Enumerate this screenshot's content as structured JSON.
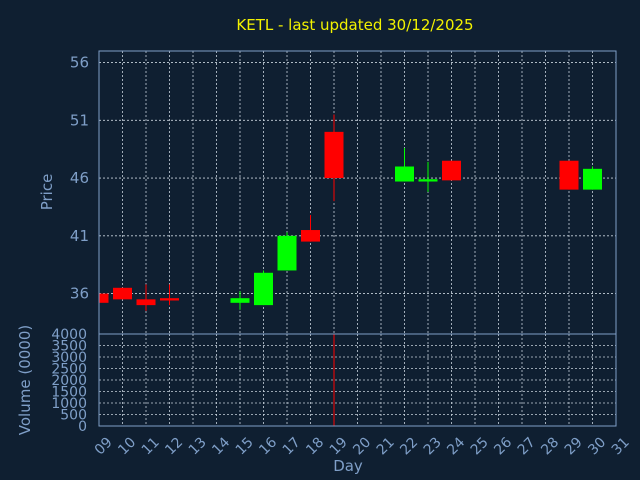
{
  "chart_data": {
    "type": "candlestick",
    "title": "KETL - last updated 30/12/2025",
    "xlabel": "Day",
    "ylabel": "Price",
    "volume_label": "Volume (0000)",
    "x_ticks": [
      "09",
      "10",
      "11",
      "12",
      "13",
      "14",
      "15",
      "16",
      "17",
      "18",
      "19",
      "20",
      "21",
      "22",
      "23",
      "24",
      "25",
      "26",
      "27",
      "28",
      "29",
      "30",
      "31"
    ],
    "price_ticks": [
      36,
      41,
      46,
      51,
      56
    ],
    "price_ylim": [
      32.5,
      57
    ],
    "volume_ticks": [
      0,
      500,
      1000,
      1500,
      2000,
      2500,
      3000,
      3500,
      4000
    ],
    "volume_ylim": [
      0,
      4000
    ],
    "grid": true,
    "up_color": "#00ff00",
    "down_color": "#ff0000",
    "candles": [
      {
        "day": "09",
        "open": 36.0,
        "high": 36.0,
        "low": 35.2,
        "close": 35.2,
        "volume": 0
      },
      {
        "day": "10",
        "open": 36.5,
        "high": 36.5,
        "low": 35.5,
        "close": 35.5,
        "volume": 0
      },
      {
        "day": "11",
        "open": 35.5,
        "high": 36.8,
        "low": 34.5,
        "close": 35.0,
        "volume": 0
      },
      {
        "day": "12",
        "open": 35.6,
        "high": 36.8,
        "low": 35.0,
        "close": 35.4,
        "volume": 0
      },
      {
        "day": "15",
        "open": 35.2,
        "high": 36.2,
        "low": 34.6,
        "close": 35.6,
        "volume": 0
      },
      {
        "day": "16",
        "open": 35.0,
        "high": 38.0,
        "low": 35.0,
        "close": 37.8,
        "volume": 0
      },
      {
        "day": "17",
        "open": 38.0,
        "high": 41.3,
        "low": 38.0,
        "close": 41.0,
        "volume": 0
      },
      {
        "day": "18",
        "open": 41.5,
        "high": 42.8,
        "low": 40.5,
        "close": 40.5,
        "volume": 0
      },
      {
        "day": "19",
        "open": 50.0,
        "high": 51.5,
        "low": 44.0,
        "close": 46.0,
        "volume": 4000
      },
      {
        "day": "22",
        "open": 45.7,
        "high": 48.6,
        "low": 45.7,
        "close": 47.0,
        "volume": 0
      },
      {
        "day": "23",
        "open": 45.7,
        "high": 47.4,
        "low": 44.8,
        "close": 45.9,
        "volume": 0
      },
      {
        "day": "24",
        "open": 47.5,
        "high": 47.5,
        "low": 45.8,
        "close": 45.8,
        "volume": 0
      },
      {
        "day": "29",
        "open": 47.5,
        "high": 47.5,
        "low": 45.0,
        "close": 45.0,
        "volume": 0
      },
      {
        "day": "30",
        "open": 45.0,
        "high": 47.0,
        "low": 45.0,
        "close": 46.8,
        "volume": 0
      }
    ]
  }
}
